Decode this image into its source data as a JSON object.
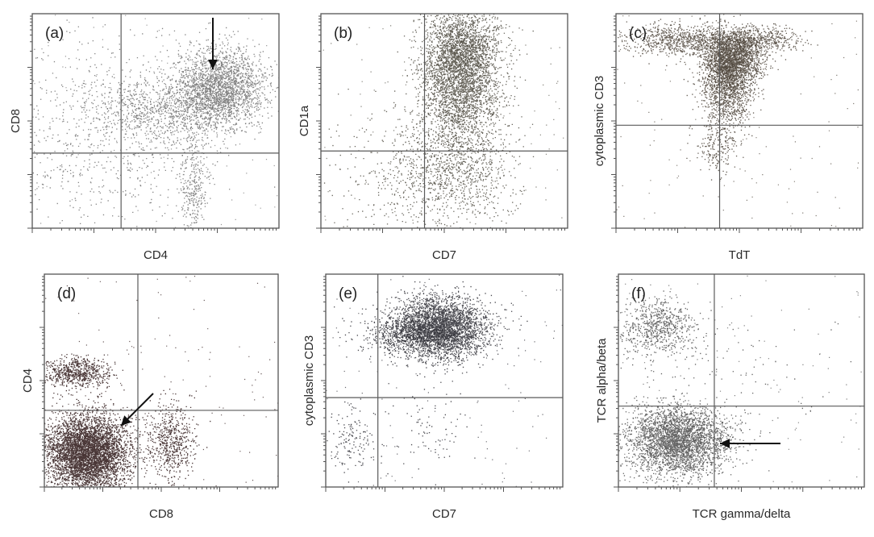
{
  "figure": {
    "panels": [
      {
        "id": "a",
        "letter": "(a)",
        "xlabel": "CD4",
        "ylabel": "CD8",
        "color": "#6e6e6e",
        "arrow": "down"
      },
      {
        "id": "b",
        "letter": "(b)",
        "xlabel": "CD7",
        "ylabel": "CD1a",
        "color": "#4d4a3f",
        "arrow": "none"
      },
      {
        "id": "c",
        "letter": "(c)",
        "xlabel": "TdT",
        "ylabel": "cytoplasmic CD3",
        "color": "#4a4136",
        "arrow": "none"
      },
      {
        "id": "d",
        "letter": "(d)",
        "xlabel": "CD8",
        "ylabel": "CD4",
        "color": "#2a1414",
        "arrow": "down-left"
      },
      {
        "id": "e",
        "letter": "(e)",
        "xlabel": "CD7",
        "ylabel": "cytoplasmic CD3",
        "color": "#2b2b33",
        "arrow": "none"
      },
      {
        "id": "f",
        "letter": "(f)",
        "xlabel": "TCR gamma/delta",
        "ylabel": "TCR alpha/beta",
        "color": "#4a4a4a",
        "arrow": "left"
      }
    ]
  },
  "chart_data": [
    {
      "type": "scatter",
      "panel": "(a)",
      "xlabel": "CD4",
      "ylabel": "CD8",
      "xlim": [
        0,
        1
      ],
      "ylim": [
        0,
        1
      ],
      "grid": false,
      "legend": "none",
      "gates": {
        "x": 0.36,
        "y": 0.35
      },
      "clusters": [
        {
          "cx": 0.76,
          "cy": 0.66,
          "sx": 0.09,
          "sy": 0.09,
          "n": 2200
        },
        {
          "cx": 0.55,
          "cy": 0.55,
          "sx": 0.14,
          "sy": 0.08,
          "n": 900
        },
        {
          "cx": 0.65,
          "cy": 0.2,
          "sx": 0.03,
          "sy": 0.12,
          "n": 300
        },
        {
          "cx": 0.3,
          "cy": 0.45,
          "sx": 0.22,
          "sy": 0.22,
          "n": 800
        }
      ]
    },
    {
      "type": "scatter",
      "panel": "(b)",
      "xlabel": "CD7",
      "ylabel": "CD1a",
      "xlim": [
        0,
        1
      ],
      "ylim": [
        0,
        1
      ],
      "grid": false,
      "legend": "none",
      "gates": {
        "x": 0.42,
        "y": 0.36
      },
      "clusters": [
        {
          "cx": 0.56,
          "cy": 0.7,
          "sx": 0.08,
          "sy": 0.15,
          "n": 3200
        },
        {
          "cx": 0.58,
          "cy": 0.85,
          "sx": 0.07,
          "sy": 0.08,
          "n": 800
        },
        {
          "cx": 0.55,
          "cy": 0.28,
          "sx": 0.12,
          "sy": 0.14,
          "n": 900
        },
        {
          "cx": 0.35,
          "cy": 0.25,
          "sx": 0.18,
          "sy": 0.15,
          "n": 400
        }
      ]
    },
    {
      "type": "scatter",
      "panel": "(c)",
      "xlabel": "TdT",
      "ylabel": "cytoplasmic CD3",
      "xlim": [
        0,
        1
      ],
      "ylim": [
        0,
        1
      ],
      "grid": false,
      "legend": "none",
      "gates": {
        "x": 0.42,
        "y": 0.48
      },
      "clusters": [
        {
          "cx": 0.47,
          "cy": 0.8,
          "sx": 0.06,
          "sy": 0.06,
          "n": 2200
        },
        {
          "cx": 0.45,
          "cy": 0.65,
          "sx": 0.05,
          "sy": 0.09,
          "n": 1200
        },
        {
          "cx": 0.26,
          "cy": 0.88,
          "sx": 0.12,
          "sy": 0.035,
          "n": 800
        },
        {
          "cx": 0.6,
          "cy": 0.88,
          "sx": 0.07,
          "sy": 0.03,
          "n": 400
        },
        {
          "cx": 0.41,
          "cy": 0.38,
          "sx": 0.04,
          "sy": 0.07,
          "n": 200
        }
      ]
    },
    {
      "type": "scatter",
      "panel": "(d)",
      "xlabel": "CD8",
      "ylabel": "CD4",
      "xlim": [
        0,
        1
      ],
      "ylim": [
        0,
        1
      ],
      "grid": false,
      "legend": "none",
      "gates": {
        "x": 0.4,
        "y": 0.36
      },
      "clusters": [
        {
          "cx": 0.18,
          "cy": 0.16,
          "sx": 0.09,
          "sy": 0.09,
          "n": 5000
        },
        {
          "cx": 0.14,
          "cy": 0.54,
          "sx": 0.07,
          "sy": 0.035,
          "n": 700
        },
        {
          "cx": 0.54,
          "cy": 0.22,
          "sx": 0.05,
          "sy": 0.09,
          "n": 600
        }
      ]
    },
    {
      "type": "scatter",
      "panel": "(e)",
      "xlabel": "CD7",
      "ylabel": "cytoplasmic CD3",
      "xlim": [
        0,
        1
      ],
      "ylim": [
        0,
        1
      ],
      "grid": false,
      "legend": "none",
      "gates": {
        "x": 0.22,
        "y": 0.42
      },
      "clusters": [
        {
          "cx": 0.48,
          "cy": 0.75,
          "sx": 0.1,
          "sy": 0.07,
          "n": 3500
        },
        {
          "cx": 0.35,
          "cy": 0.72,
          "sx": 0.1,
          "sy": 0.05,
          "n": 600
        },
        {
          "cx": 0.1,
          "cy": 0.22,
          "sx": 0.06,
          "sy": 0.08,
          "n": 150
        },
        {
          "cx": 0.45,
          "cy": 0.28,
          "sx": 0.08,
          "sy": 0.09,
          "n": 80
        }
      ]
    },
    {
      "type": "scatter",
      "panel": "(f)",
      "xlabel": "TCR gamma/delta",
      "ylabel": "TCR alpha/beta",
      "xlim": [
        0,
        1
      ],
      "ylim": [
        0,
        1
      ],
      "grid": false,
      "legend": "none",
      "gates": {
        "x": 0.39,
        "y": 0.38
      },
      "clusters": [
        {
          "cx": 0.24,
          "cy": 0.22,
          "sx": 0.1,
          "sy": 0.08,
          "n": 3200
        },
        {
          "cx": 0.16,
          "cy": 0.75,
          "sx": 0.08,
          "sy": 0.07,
          "n": 700
        },
        {
          "cx": 0.45,
          "cy": 0.45,
          "sx": 0.25,
          "sy": 0.22,
          "n": 120
        }
      ]
    }
  ]
}
